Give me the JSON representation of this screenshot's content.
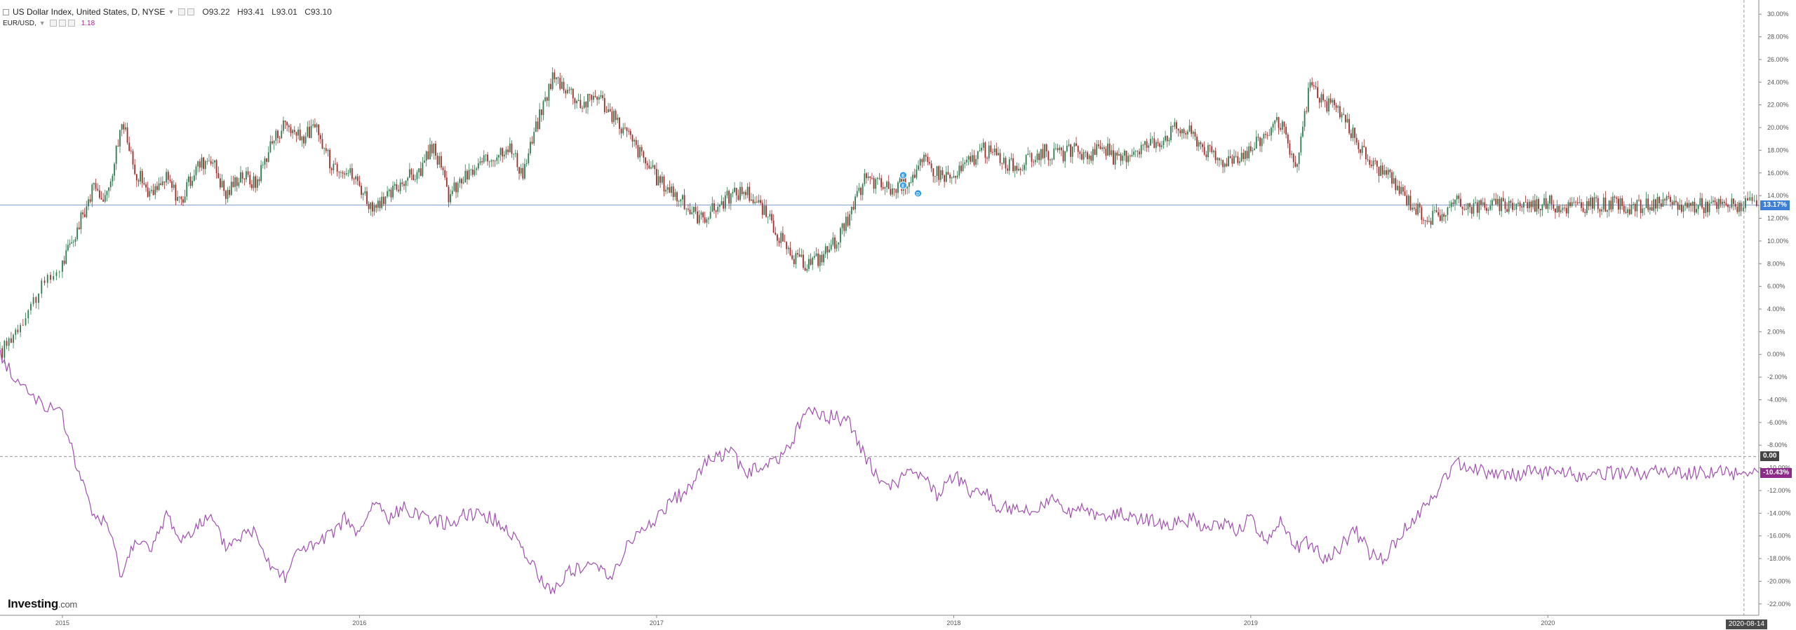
{
  "legend": {
    "main_title": "US Dollar Index, United States, D, NYSE",
    "ohlc": {
      "o_label": "O",
      "o_value": "93.22",
      "h_label": "H",
      "h_value": "93.41",
      "l_label": "L",
      "l_value": "93.01",
      "c_label": "C",
      "c_value": "93.10"
    },
    "compare_symbol": "EUR/USD,",
    "compare_value": "1.18"
  },
  "colors": {
    "up": "#2e7d4f",
    "down": "#a52a2a",
    "compare_line": "#a050b0",
    "price_line": "#7a9cc8",
    "zero_line": "#999999",
    "badge_price": "#3d7fd6",
    "badge_compare": "#8e2a8a",
    "badge_zero": "#444444",
    "axis": "#555555",
    "marker": "#2196f3"
  },
  "badges": {
    "price_badge": "13.17%",
    "zero_badge": "0.00",
    "compare_badge": "-10.43%"
  },
  "crosshair_date": "2020-08-14",
  "logo": {
    "brand": "Investing",
    "suffix": ".com"
  },
  "markers": [
    "E",
    "E",
    "D"
  ],
  "chart_data": {
    "type": "line",
    "y_axis": {
      "min": -23,
      "max": 31,
      "unit": "%",
      "tick_labels": [
        "30.00%",
        "28.00%",
        "26.00%",
        "24.00%",
        "22.00%",
        "20.00%",
        "18.00%",
        "16.00%",
        "14.00%",
        "12.00%",
        "10.00%",
        "8.00%",
        "6.00%",
        "4.00%",
        "2.00%",
        "0.00%",
        "-2.00%",
        "-4.00%",
        "-6.00%",
        "-8.00%",
        "-10.00%",
        "-12.00%",
        "-14.00%",
        "-16.00%",
        "-18.00%",
        "-20.00%",
        "-22.00%"
      ]
    },
    "x_axis": {
      "start": 2014.79,
      "end": 2020.71,
      "tick_labels": [
        "2015",
        "2016",
        "2017",
        "2018",
        "2019",
        "2020"
      ],
      "tick_values": [
        2015,
        2016,
        2017,
        2018,
        2019,
        2020
      ]
    },
    "zero_reference_pct": 0,
    "series": [
      {
        "name": "US Dollar Index",
        "style": "candlestick",
        "x": [
          2014.79,
          2014.85,
          2014.92,
          2015.0,
          2015.05,
          2015.1,
          2015.15,
          2015.2,
          2015.25,
          2015.3,
          2015.35,
          2015.4,
          2015.45,
          2015.5,
          2015.55,
          2015.6,
          2015.65,
          2015.7,
          2015.75,
          2015.8,
          2015.85,
          2015.9,
          2015.95,
          2016.0,
          2016.05,
          2016.1,
          2016.15,
          2016.2,
          2016.25,
          2016.3,
          2016.35,
          2016.4,
          2016.45,
          2016.5,
          2016.55,
          2016.6,
          2016.65,
          2016.7,
          2016.75,
          2016.8,
          2016.85,
          2016.9,
          2016.95,
          2017.0,
          2017.05,
          2017.1,
          2017.15,
          2017.2,
          2017.25,
          2017.3,
          2017.35,
          2017.4,
          2017.45,
          2017.5,
          2017.55,
          2017.6,
          2017.65,
          2017.7,
          2017.75,
          2017.8,
          2017.85,
          2017.9,
          2017.95,
          2018.0,
          2018.05,
          2018.1,
          2018.15,
          2018.2,
          2018.25,
          2018.3,
          2018.35,
          2018.4,
          2018.45,
          2018.5,
          2018.55,
          2018.6,
          2018.65,
          2018.7,
          2018.75,
          2018.8,
          2018.85,
          2018.9,
          2018.95,
          2019.0,
          2019.05,
          2019.1,
          2019.15,
          2019.2,
          2019.25,
          2019.3,
          2019.35,
          2019.4,
          2019.45,
          2019.5,
          2019.55,
          2019.6,
          2019.65,
          2019.7,
          2019.75,
          2019.8,
          2019.85,
          2019.9,
          2019.95,
          2020.0,
          2020.05,
          2020.1,
          2020.15,
          2020.2,
          2020.25,
          2020.3,
          2020.35,
          2020.4,
          2020.45,
          2020.5,
          2020.55,
          2020.6,
          2020.65,
          2020.71
        ],
        "values": [
          0.0,
          2.5,
          5.5,
          8.0,
          11.0,
          14.5,
          14.0,
          20.5,
          16.0,
          14.0,
          15.5,
          13.5,
          16.5,
          17.5,
          14.0,
          16.0,
          15.0,
          18.5,
          20.5,
          19.0,
          20.0,
          17.0,
          16.5,
          15.0,
          12.5,
          14.0,
          15.5,
          16.0,
          18.5,
          14.0,
          15.5,
          16.5,
          17.5,
          18.5,
          16.0,
          20.5,
          24.5,
          23.5,
          22.0,
          23.0,
          21.0,
          19.5,
          17.5,
          15.5,
          14.5,
          13.0,
          12.0,
          13.0,
          14.0,
          14.5,
          13.0,
          11.0,
          8.5,
          8.0,
          8.5,
          10.0,
          12.0,
          15.5,
          15.0,
          14.5,
          15.5,
          17.0,
          16.0,
          15.5,
          17.0,
          18.0,
          17.5,
          16.5,
          17.0,
          18.0,
          17.5,
          18.0,
          17.5,
          18.5,
          17.0,
          18.0,
          18.5,
          19.0,
          20.0,
          19.5,
          18.0,
          17.0,
          17.5,
          18.0,
          19.5,
          20.5,
          16.0,
          24.0,
          22.0,
          21.5,
          19.0,
          17.0,
          16.0,
          14.5,
          13.0,
          12.0,
          12.5,
          13.5,
          13.0,
          13.2,
          13.1,
          13.3,
          13.2,
          13.4,
          13.0,
          13.1,
          13.2,
          13.3,
          13.1,
          13.0,
          13.2,
          13.3,
          13.1,
          13.2,
          13.1,
          13.17,
          13.2,
          13.17
        ]
      },
      {
        "name": "EUR/USD",
        "style": "line",
        "x": [
          2014.79,
          2014.85,
          2014.92,
          2015.0,
          2015.05,
          2015.1,
          2015.15,
          2015.2,
          2015.25,
          2015.3,
          2015.35,
          2015.4,
          2015.45,
          2015.5,
          2015.55,
          2015.6,
          2015.65,
          2015.7,
          2015.75,
          2015.8,
          2015.85,
          2015.9,
          2015.95,
          2016.0,
          2016.05,
          2016.1,
          2016.15,
          2016.2,
          2016.25,
          2016.3,
          2016.35,
          2016.4,
          2016.45,
          2016.5,
          2016.55,
          2016.6,
          2016.65,
          2016.7,
          2016.75,
          2016.8,
          2016.85,
          2016.9,
          2016.95,
          2017.0,
          2017.05,
          2017.1,
          2017.15,
          2017.2,
          2017.25,
          2017.3,
          2017.35,
          2017.4,
          2017.45,
          2017.5,
          2017.55,
          2017.6,
          2017.65,
          2017.7,
          2017.75,
          2017.8,
          2017.85,
          2017.9,
          2017.95,
          2018.0,
          2018.05,
          2018.1,
          2018.15,
          2018.2,
          2018.25,
          2018.3,
          2018.35,
          2018.4,
          2018.45,
          2018.5,
          2018.55,
          2018.6,
          2018.65,
          2018.7,
          2018.75,
          2018.8,
          2018.85,
          2018.9,
          2018.95,
          2019.0,
          2019.05,
          2019.1,
          2019.15,
          2019.2,
          2019.25,
          2019.3,
          2019.35,
          2019.4,
          2019.45,
          2019.5,
          2019.55,
          2019.6,
          2019.65,
          2019.7,
          2019.75,
          2019.8,
          2019.85,
          2019.9,
          2019.95,
          2020.0,
          2020.05,
          2020.1,
          2020.15,
          2020.2,
          2020.25,
          2020.3,
          2020.35,
          2020.4,
          2020.45,
          2020.5,
          2020.55,
          2020.6,
          2020.65,
          2020.71
        ],
        "values": [
          0.0,
          -2.5,
          -4.0,
          -5.5,
          -10.0,
          -14.0,
          -15.0,
          -19.5,
          -16.0,
          -17.5,
          -14.0,
          -16.5,
          -15.0,
          -14.5,
          -17.0,
          -16.0,
          -15.5,
          -18.5,
          -19.5,
          -17.0,
          -17.0,
          -16.0,
          -14.5,
          -16.0,
          -13.0,
          -14.5,
          -13.5,
          -14.0,
          -14.5,
          -15.0,
          -14.0,
          -14.0,
          -14.5,
          -15.5,
          -17.0,
          -19.5,
          -21.0,
          -19.0,
          -19.0,
          -18.5,
          -19.5,
          -17.0,
          -15.5,
          -14.5,
          -13.0,
          -12.0,
          -10.0,
          -9.0,
          -8.5,
          -10.5,
          -10.0,
          -9.5,
          -8.0,
          -5.0,
          -5.5,
          -5.5,
          -6.0,
          -9.0,
          -11.0,
          -11.5,
          -10.5,
          -11.0,
          -12.5,
          -10.5,
          -12.0,
          -12.0,
          -13.5,
          -13.5,
          -14.0,
          -13.0,
          -13.0,
          -14.0,
          -13.5,
          -14.5,
          -14.0,
          -14.5,
          -14.5,
          -15.0,
          -15.0,
          -14.5,
          -15.5,
          -15.0,
          -15.5,
          -14.5,
          -16.5,
          -14.5,
          -17.0,
          -16.5,
          -18.0,
          -17.0,
          -15.5,
          -17.5,
          -18.0,
          -16.0,
          -14.5,
          -13.0,
          -11.0,
          -9.5,
          -10.0,
          -10.5,
          -10.4,
          -10.6,
          -10.3,
          -10.5,
          -10.4,
          -10.6,
          -10.4,
          -10.5,
          -10.4,
          -10.5,
          -10.4,
          -10.43,
          -10.45,
          -10.4,
          -10.43,
          -10.42,
          -10.44,
          -10.43
        ]
      }
    ]
  }
}
